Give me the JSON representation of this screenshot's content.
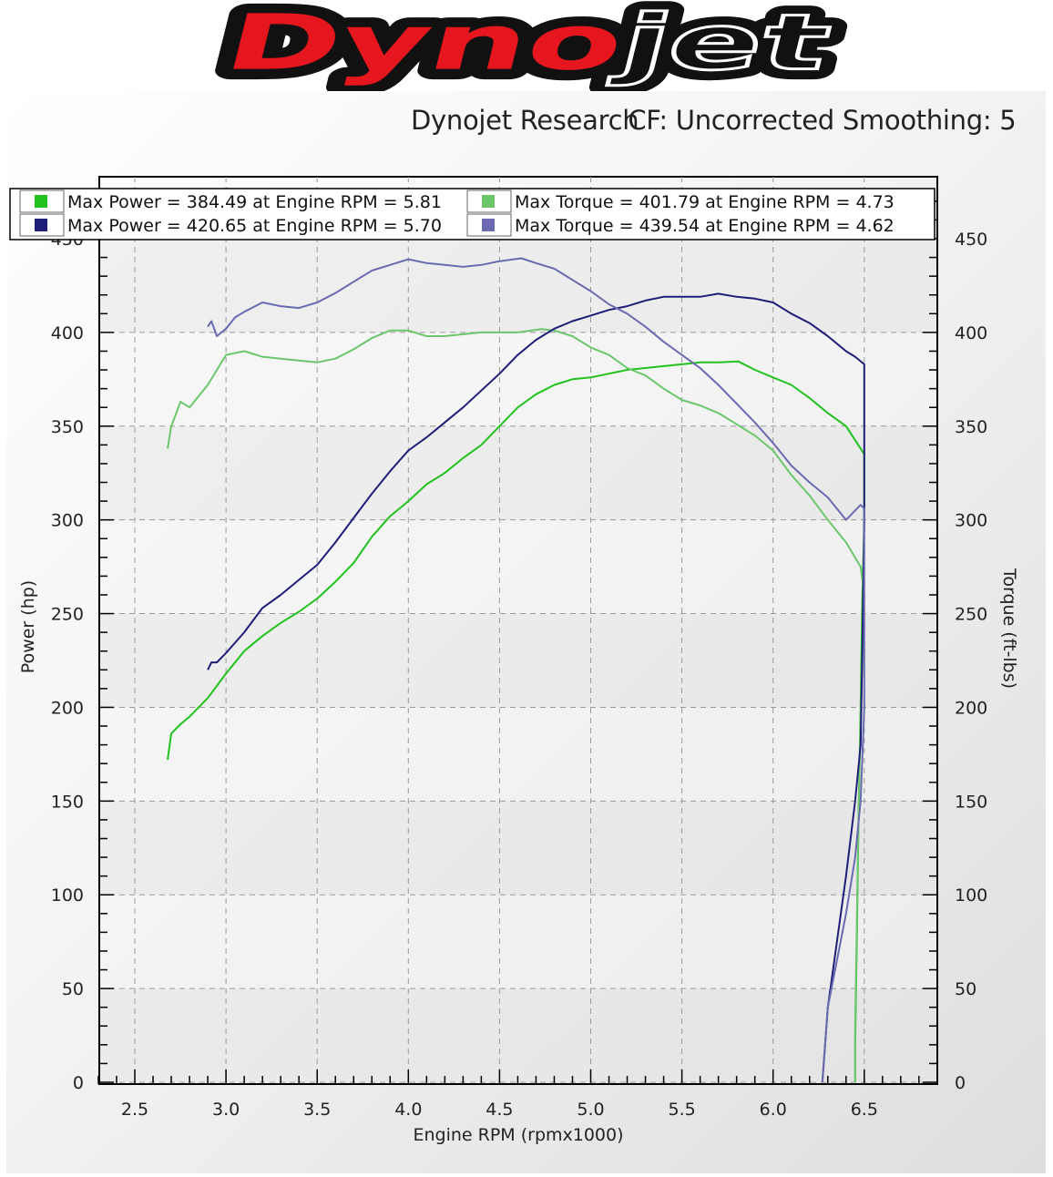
{
  "brand": {
    "logo_text": "Dynojet"
  },
  "header": {
    "source": "Dynojet Research",
    "correction": "CF: Uncorrected",
    "smoothing": "Smoothing: 5"
  },
  "colors": {
    "run1_power": "#22c21e",
    "run1_torque": "#6cc76c",
    "run2_power": "#1e1e78",
    "run2_torque": "#6a6ab0"
  },
  "chart_data": {
    "type": "line",
    "xlabel": "Engine RPM (rpmx1000)",
    "ylabel": "Power (hp)",
    "y2label": "Torque (ft-lbs)",
    "xlim": [
      2.3,
      6.9
    ],
    "ylim": [
      0,
      450
    ],
    "y2lim": [
      0,
      450
    ],
    "xticks": [
      "2.5",
      "3.0",
      "3.5",
      "4.0",
      "4.5",
      "5.0",
      "5.5",
      "6.0",
      "6.5"
    ],
    "yticks": [
      "0",
      "50",
      "100",
      "150",
      "200",
      "250",
      "300",
      "350",
      "400",
      "450"
    ],
    "grid": true,
    "legend_position": "top",
    "legend": [
      {
        "text": "Max Power = 384.49 at Engine RPM = 5.81",
        "series": "run1_power"
      },
      {
        "text": "Max Torque = 401.79 at Engine RPM = 4.73",
        "series": "run1_torque"
      },
      {
        "text": "Max Power = 420.65 at Engine RPM = 5.70",
        "series": "run2_power"
      },
      {
        "text": "Max Torque = 439.54 at Engine RPM = 4.62",
        "series": "run2_torque"
      }
    ],
    "series": [
      {
        "key": "run1_power",
        "axis": "left",
        "x": [
          2.68,
          2.7,
          2.75,
          2.8,
          2.9,
          3.0,
          3.1,
          3.2,
          3.3,
          3.4,
          3.5,
          3.6,
          3.7,
          3.8,
          3.9,
          4.0,
          4.1,
          4.2,
          4.3,
          4.4,
          4.5,
          4.6,
          4.7,
          4.8,
          4.9,
          5.0,
          5.1,
          5.2,
          5.3,
          5.4,
          5.5,
          5.6,
          5.7,
          5.81,
          5.9,
          6.0,
          6.1,
          6.2,
          6.3,
          6.4,
          6.5,
          6.5,
          6.49,
          6.48,
          6.47,
          6.46,
          6.45,
          6.45
        ],
        "y": [
          172,
          186,
          191,
          195,
          205,
          218,
          230,
          238,
          245,
          251,
          258,
          267,
          277,
          291,
          302,
          310,
          319,
          325,
          333,
          340,
          350,
          360,
          367,
          372,
          375,
          376,
          378,
          380,
          381,
          382,
          383,
          384,
          384,
          384.49,
          380,
          376,
          372,
          365,
          357,
          350,
          335,
          300,
          260,
          200,
          150,
          80,
          20,
          0
        ]
      },
      {
        "key": "run1_torque",
        "axis": "right",
        "x": [
          2.68,
          2.7,
          2.72,
          2.75,
          2.8,
          2.9,
          3.0,
          3.1,
          3.2,
          3.3,
          3.4,
          3.5,
          3.6,
          3.7,
          3.8,
          3.9,
          4.0,
          4.1,
          4.2,
          4.3,
          4.4,
          4.5,
          4.6,
          4.73,
          4.8,
          4.9,
          5.0,
          5.1,
          5.2,
          5.3,
          5.4,
          5.5,
          5.6,
          5.7,
          5.8,
          5.9,
          6.0,
          6.1,
          6.2,
          6.3,
          6.4,
          6.48,
          6.5,
          6.49,
          6.48,
          6.47,
          6.46,
          6.45,
          6.45
        ],
        "y": [
          338,
          350,
          355,
          363,
          360,
          372,
          388,
          390,
          387,
          386,
          385,
          384,
          386,
          391,
          397,
          401,
          401,
          398,
          398,
          399,
          400,
          400,
          400,
          401.79,
          401,
          398,
          392,
          388,
          381,
          377,
          370,
          364,
          361,
          357,
          351,
          345,
          337,
          324,
          313,
          300,
          288,
          275,
          260,
          230,
          190,
          150,
          90,
          30,
          0
        ]
      },
      {
        "key": "run2_power",
        "axis": "left",
        "x": [
          2.9,
          2.92,
          2.95,
          3.0,
          3.1,
          3.2,
          3.3,
          3.4,
          3.5,
          3.6,
          3.7,
          3.8,
          3.9,
          4.0,
          4.1,
          4.2,
          4.3,
          4.4,
          4.5,
          4.6,
          4.7,
          4.8,
          4.9,
          5.0,
          5.1,
          5.2,
          5.3,
          5.4,
          5.5,
          5.6,
          5.7,
          5.8,
          5.9,
          6.0,
          6.1,
          6.2,
          6.3,
          6.4,
          6.45,
          6.5,
          6.5,
          6.49,
          6.48,
          6.45,
          6.4,
          6.3,
          6.27
        ],
        "y": [
          220,
          224,
          224,
          229,
          240,
          253,
          260,
          268,
          276,
          288,
          301,
          314,
          326,
          337,
          344,
          352,
          360,
          369,
          378,
          388,
          396,
          402,
          406,
          409,
          412,
          414,
          417,
          419,
          419,
          419,
          420.65,
          419,
          418,
          416,
          410,
          405,
          398,
          390,
          387,
          383,
          300,
          235,
          180,
          150,
          110,
          40,
          0
        ]
      },
      {
        "key": "run2_torque",
        "axis": "right",
        "x": [
          2.9,
          2.92,
          2.95,
          3.0,
          3.05,
          3.1,
          3.2,
          3.3,
          3.4,
          3.5,
          3.6,
          3.7,
          3.8,
          3.9,
          4.0,
          4.1,
          4.2,
          4.3,
          4.4,
          4.5,
          4.62,
          4.7,
          4.8,
          4.9,
          5.0,
          5.1,
          5.2,
          5.3,
          5.4,
          5.5,
          5.6,
          5.7,
          5.8,
          5.9,
          6.0,
          6.1,
          6.2,
          6.3,
          6.4,
          6.48,
          6.5,
          6.5,
          6.49,
          6.48,
          6.45,
          6.4,
          6.3,
          6.27
        ],
        "y": [
          403,
          406,
          398,
          402,
          408,
          411,
          416,
          414,
          413,
          416,
          421,
          427,
          433,
          436,
          439,
          437,
          436,
          435,
          436,
          438,
          439.54,
          437,
          434,
          428,
          422,
          415,
          410,
          403,
          395,
          388,
          381,
          372,
          362,
          352,
          341,
          329,
          320,
          312,
          300,
          308,
          306,
          200,
          175,
          150,
          120,
          90,
          40,
          0
        ]
      }
    ]
  }
}
